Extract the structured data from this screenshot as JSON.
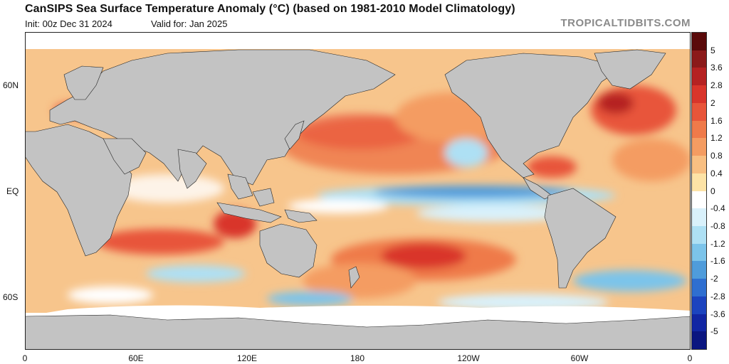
{
  "header": {
    "title": "CanSIPS Sea Surface Temperature Anomaly (°C) (based on 1981-2010 Model Climatology)",
    "init": "Init: 00z Dec 31 2024",
    "valid": "Valid for: Jan 2025",
    "brand": "TROPICALTIDBITS.COM"
  },
  "axes": {
    "lat_labels": [
      "60N",
      "EQ",
      "60S"
    ],
    "lon_labels": [
      "0",
      "60E",
      "120E",
      "180",
      "120W",
      "60W",
      "0"
    ]
  },
  "colorbar": {
    "labels": [
      "5",
      "3.6",
      "2.8",
      "2",
      "1.6",
      "1.2",
      "0.8",
      "0.4",
      "0",
      "-0.4",
      "-0.8",
      "-1.2",
      "-1.6",
      "-2",
      "-2.8",
      "-3.6",
      "-5"
    ],
    "colors": [
      "#5a0a0a",
      "#8b1a1a",
      "#b52222",
      "#d9352b",
      "#e8553a",
      "#ef7a4a",
      "#f49c62",
      "#f8bf82",
      "#fde3a6",
      "#ffffff",
      "#d9f1fb",
      "#aee0f4",
      "#7cc4ea",
      "#4f9cdb",
      "#2f6fd0",
      "#1c44bf",
      "#1226a3",
      "#0b1680"
    ]
  },
  "map": {
    "ocean_color": "#f7c58c",
    "land_color": "#c3c3c3",
    "ice_color": "#ffffff"
  }
}
